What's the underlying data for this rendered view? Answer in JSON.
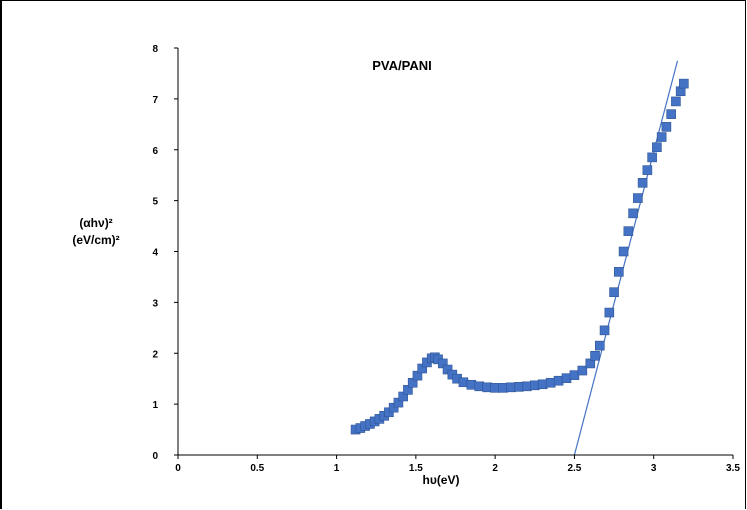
{
  "chart_data": {
    "type": "scatter",
    "title": "PVA/PANI",
    "xlabel": "hυ(eV)",
    "ylabel_line1": "(αhν)²",
    "ylabel_line2": "(eV/cm)²",
    "xlim": [
      0,
      3.5
    ],
    "ylim": [
      0,
      8
    ],
    "x_ticks": [
      "0",
      "0.5",
      "1",
      "1.5",
      "2",
      "2.5",
      "3",
      "3.5"
    ],
    "y_ticks": [
      "0",
      "1",
      "2",
      "3",
      "4",
      "5",
      "6",
      "7",
      "8"
    ],
    "grid": false,
    "marker_color": "#4472C4",
    "line_color": "#4472C4",
    "series": [
      {
        "marker": "square",
        "points": [
          [
            1.12,
            0.5
          ],
          [
            1.15,
            0.53
          ],
          [
            1.18,
            0.57
          ],
          [
            1.21,
            0.61
          ],
          [
            1.24,
            0.66
          ],
          [
            1.27,
            0.71
          ],
          [
            1.3,
            0.77
          ],
          [
            1.33,
            0.84
          ],
          [
            1.36,
            0.93
          ],
          [
            1.39,
            1.03
          ],
          [
            1.42,
            1.15
          ],
          [
            1.45,
            1.28
          ],
          [
            1.48,
            1.42
          ],
          [
            1.51,
            1.56
          ],
          [
            1.54,
            1.7
          ],
          [
            1.57,
            1.82
          ],
          [
            1.6,
            1.9
          ],
          [
            1.62,
            1.92
          ],
          [
            1.64,
            1.88
          ],
          [
            1.67,
            1.8
          ],
          [
            1.7,
            1.68
          ],
          [
            1.73,
            1.58
          ],
          [
            1.76,
            1.5
          ],
          [
            1.8,
            1.43
          ],
          [
            1.85,
            1.38
          ],
          [
            1.9,
            1.35
          ],
          [
            1.95,
            1.33
          ],
          [
            2.0,
            1.32
          ],
          [
            2.05,
            1.32
          ],
          [
            2.1,
            1.33
          ],
          [
            2.15,
            1.34
          ],
          [
            2.2,
            1.35
          ],
          [
            2.25,
            1.37
          ],
          [
            2.3,
            1.39
          ],
          [
            2.35,
            1.42
          ],
          [
            2.4,
            1.46
          ],
          [
            2.45,
            1.51
          ],
          [
            2.5,
            1.57
          ],
          [
            2.55,
            1.66
          ],
          [
            2.6,
            1.8
          ],
          [
            2.63,
            1.95
          ],
          [
            2.66,
            2.15
          ],
          [
            2.69,
            2.45
          ],
          [
            2.72,
            2.8
          ],
          [
            2.75,
            3.2
          ],
          [
            2.78,
            3.6
          ],
          [
            2.81,
            4.0
          ],
          [
            2.84,
            4.4
          ],
          [
            2.87,
            4.75
          ],
          [
            2.9,
            5.05
          ],
          [
            2.93,
            5.35
          ],
          [
            2.96,
            5.6
          ],
          [
            2.99,
            5.85
          ],
          [
            3.02,
            6.05
          ],
          [
            3.05,
            6.25
          ],
          [
            3.08,
            6.45
          ],
          [
            3.11,
            6.7
          ],
          [
            3.14,
            6.95
          ],
          [
            3.17,
            7.15
          ],
          [
            3.19,
            7.3
          ]
        ]
      },
      {
        "marker": "none",
        "type": "line",
        "points": [
          [
            2.5,
            0
          ],
          [
            3.15,
            7.75
          ]
        ]
      }
    ]
  }
}
